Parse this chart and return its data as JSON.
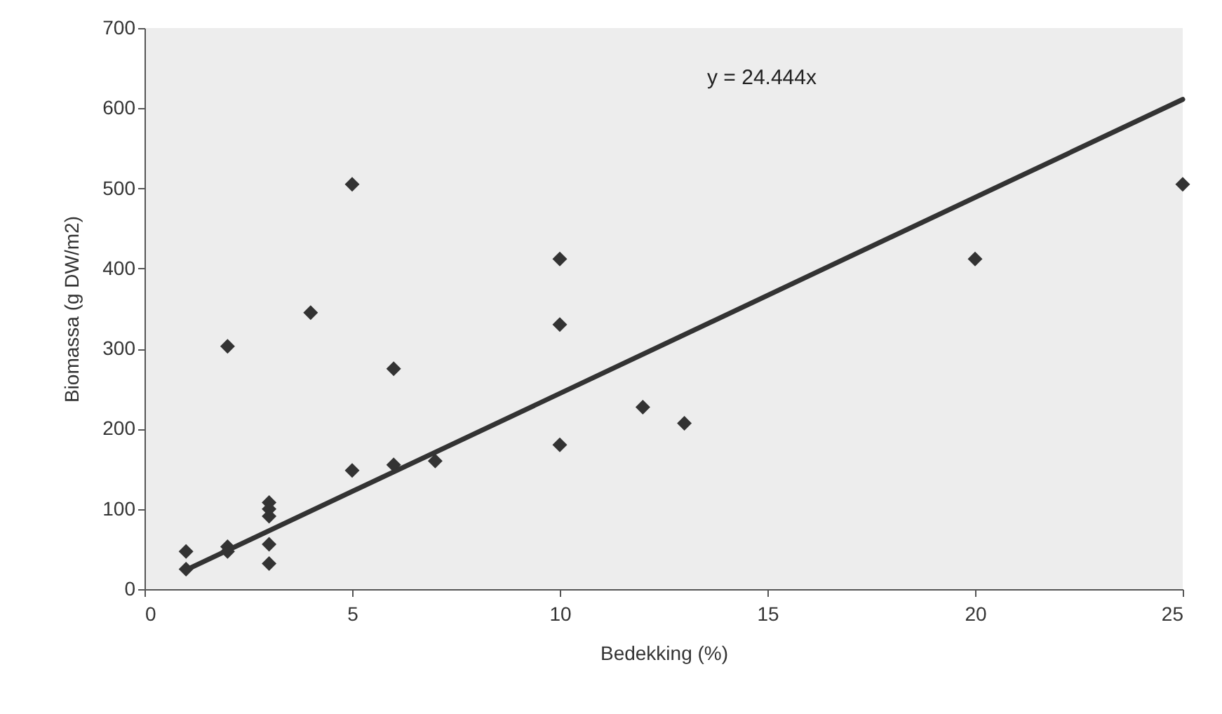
{
  "chart_data": {
    "type": "scatter",
    "xlabel": "Bedekking (%)",
    "ylabel": "Biomassa (g DW/m2)",
    "annotations": [
      "y = 24.444x"
    ],
    "series": [
      {
        "color": "#333333",
        "marker": "diamond",
        "x": [
          1,
          1,
          2,
          2,
          2,
          3,
          3,
          3,
          3,
          3,
          4,
          5,
          5,
          6,
          6,
          7,
          10,
          10,
          10,
          12,
          13,
          20,
          25
        ],
        "values": [
          47,
          25,
          303,
          53,
          47,
          108,
          100,
          91,
          56,
          32,
          345,
          505,
          148,
          275,
          155,
          160,
          412,
          330,
          180,
          227,
          207,
          412,
          505
        ]
      },
      {
        "type": "line",
        "color": "#333333",
        "line_style": "solid",
        "x": [
          1,
          25
        ],
        "values": [
          24,
          611
        ]
      }
    ],
    "xlim": [
      0,
      25
    ],
    "xticks": [
      0,
      5,
      10,
      15,
      20,
      25
    ],
    "ylim": [
      0,
      700
    ],
    "yticks": [
      0,
      100,
      200,
      300,
      400,
      500,
      600,
      700
    ],
    "grid": false
  }
}
